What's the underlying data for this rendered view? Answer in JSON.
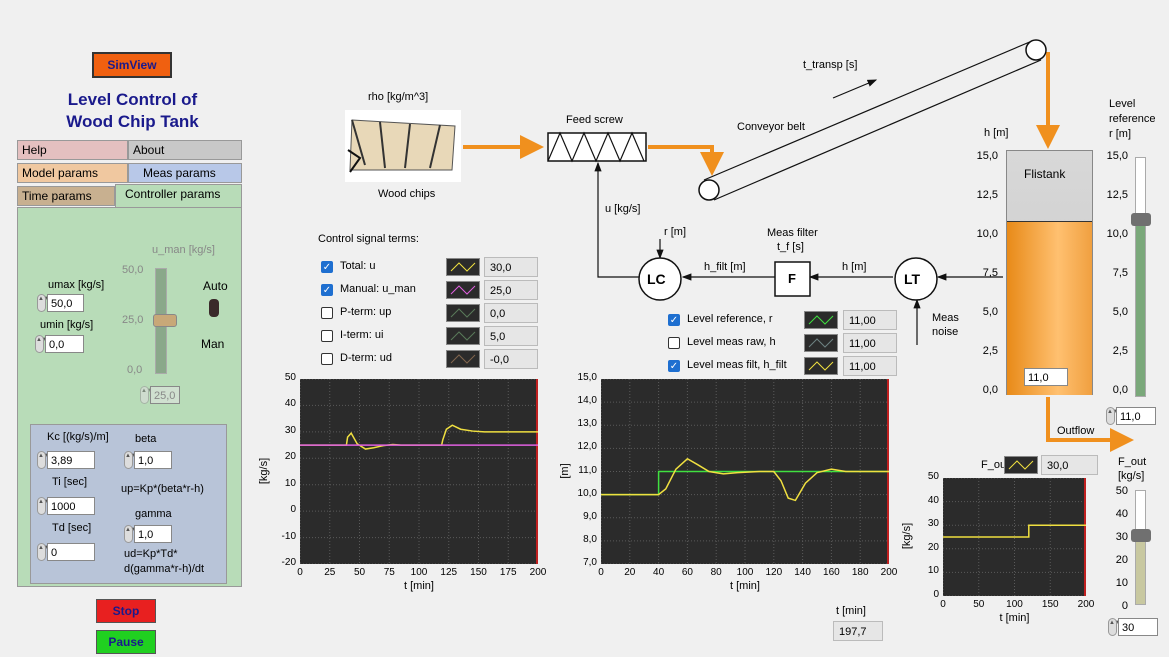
{
  "app": {
    "simview_label": "SimView",
    "title_line1": "Level Control of",
    "title_line2": "Wood Chip Tank"
  },
  "tabs": [
    "Help",
    "About",
    "Model params",
    "Meas params",
    "Time params",
    "Controller params"
  ],
  "manual_panel": {
    "umax_label": "umax [kg/s]",
    "umax_value": "50,0",
    "umin_label": "umin [kg/s]",
    "umin_value": "0,0",
    "u_man_label": "u_man [kg/s]",
    "slider_ticks": [
      "50,0",
      "25,0",
      "0,0"
    ],
    "u_man_value": "25,0",
    "auto_label": "Auto",
    "man_label": "Man"
  },
  "pid_panel": {
    "kc_label": "Kc [(kg/s)/m]",
    "kc_value": "3,89",
    "beta_label": "beta",
    "beta_value": "1,0",
    "ti_label": "Ti [sec]",
    "ti_value": "1000",
    "up_formula": "up=Kp*(beta*r-h)",
    "td_label": "Td [sec]",
    "td_value": "0",
    "gamma_label": "gamma",
    "gamma_value": "1,0",
    "ud_formula_1": "ud=Kp*Td*",
    "ud_formula_2": "d(gamma*r-h)/dt"
  },
  "buttons": {
    "stop": "Stop",
    "pause": "Pause"
  },
  "process": {
    "rho_label": "rho [kg/m^3]",
    "wood_chips_label": "Wood chips",
    "feed_screw_label": "Feed screw",
    "t_transp_label": "t_transp [s]",
    "conveyor_label": "Conveyor belt",
    "u_label": "u [kg/s]",
    "r_label": "r [m]",
    "h_filt_label": "h_filt [m]",
    "lc_label": "LC",
    "meas_filter_label": "Meas filter",
    "tf_label": "t_f [s]",
    "f_label": "F",
    "h_label": "h [m]",
    "lt_label": "LT",
    "meas_noise_1": "Meas",
    "meas_noise_2": "noise",
    "outflow_label": "Outflow"
  },
  "signals": {
    "title": "Control signal terms:",
    "items": [
      {
        "label": "Total: u",
        "checked": true,
        "value": "30,0",
        "color": "#f0e040"
      },
      {
        "label": "Manual: u_man",
        "checked": true,
        "value": "25,0",
        "color": "#e060e0"
      },
      {
        "label": "P-term: up",
        "checked": false,
        "value": "0,0",
        "color": "#88c888"
      },
      {
        "label": "I-term: ui",
        "checked": false,
        "value": "5,0",
        "color": "#88c888"
      },
      {
        "label": "D-term: ud",
        "checked": false,
        "value": "-0,0",
        "color": "#d8a070"
      }
    ]
  },
  "level_signals": {
    "items": [
      {
        "label": "Level reference, r",
        "checked": true,
        "value": "11,00",
        "color": "#40e040"
      },
      {
        "label": "Level meas raw, h",
        "checked": false,
        "value": "11,00",
        "color": "#b0d8d8"
      },
      {
        "label": "Level meas filt, h_filt",
        "checked": true,
        "value": "11,00",
        "color": "#f0e040"
      }
    ]
  },
  "tank": {
    "h_label": "h [m]",
    "name": "Flistank",
    "level_value": "11,0",
    "ticks": [
      "15,0",
      "12,5",
      "10,0",
      "7,5",
      "5,0",
      "2,5",
      "0,0"
    ]
  },
  "level_ref": {
    "label_1": "Level",
    "label_2": "reference",
    "label_3": "r [m]",
    "ticks": [
      "15,0",
      "12,5",
      "10,0",
      "7,5",
      "5,0",
      "2,5",
      "0,0"
    ],
    "value": "11,0"
  },
  "fout": {
    "legend_label": "F_out",
    "legend_value": "30,0",
    "slider_label_1": "F_out",
    "slider_label_2": "[kg/s]",
    "slider_ticks": [
      "50",
      "40",
      "30",
      "20",
      "10",
      "0"
    ],
    "slider_value": "30"
  },
  "time_readout": {
    "label": "t [min]",
    "value": "197,7"
  },
  "chart_data": [
    {
      "type": "line",
      "name": "control-signal-chart",
      "xlabel": "t [min]",
      "ylabel": "[kg/s]",
      "xlim": [
        0,
        200
      ],
      "ylim": [
        -20,
        50
      ],
      "xticks": [
        0,
        25,
        50,
        75,
        100,
        125,
        150,
        175,
        200
      ],
      "yticks": [
        50,
        40,
        30,
        20,
        10,
        0,
        -10,
        -20
      ],
      "grid": true,
      "series": [
        {
          "color": "#f0e040",
          "x": [
            0,
            39,
            40,
            43,
            48,
            55,
            62,
            70,
            78,
            85,
            95,
            110,
            119,
            120,
            123,
            128,
            135,
            145,
            155,
            165,
            180,
            200
          ],
          "y": [
            25,
            25,
            28,
            29.5,
            25.5,
            23.5,
            24,
            24.8,
            25.2,
            25,
            25,
            25,
            25,
            27,
            31,
            32.5,
            31,
            30.3,
            30,
            30,
            30,
            30
          ]
        },
        {
          "color": "#e060e0",
          "x": [
            0,
            200
          ],
          "y": [
            25,
            25
          ]
        }
      ]
    },
    {
      "type": "line",
      "name": "level-chart",
      "xlabel": "t [min]",
      "ylabel": "[m]",
      "xlim": [
        0,
        200
      ],
      "ylim": [
        7,
        15
      ],
      "xticks": [
        0,
        20,
        40,
        60,
        80,
        100,
        120,
        140,
        160,
        180,
        200
      ],
      "yticks": [
        15,
        14,
        13,
        12,
        11,
        10,
        9,
        8,
        7
      ],
      "grid": true,
      "series": [
        {
          "color": "#40e040",
          "x": [
            0,
            40,
            40,
            200
          ],
          "y": [
            10,
            10,
            11,
            11
          ]
        },
        {
          "color": "#f0e040",
          "x": [
            0,
            40,
            45,
            52,
            60,
            67,
            75,
            85,
            95,
            110,
            120,
            125,
            130,
            135,
            142,
            150,
            160,
            170,
            200
          ],
          "y": [
            10,
            10,
            10.25,
            11.1,
            11.55,
            11.3,
            11.0,
            10.9,
            10.95,
            11,
            11,
            10.6,
            9.85,
            9.75,
            10.5,
            10.95,
            11.1,
            11.0,
            11
          ]
        }
      ]
    },
    {
      "type": "line",
      "name": "outflow-chart",
      "xlabel": "t [min]",
      "ylabel": "[kg/s]",
      "xlim": [
        0,
        200
      ],
      "ylim": [
        0,
        50
      ],
      "xticks": [
        0,
        50,
        100,
        150,
        200
      ],
      "yticks": [
        50,
        40,
        30,
        20,
        10,
        0
      ],
      "grid": true,
      "series": [
        {
          "color": "#f0e040",
          "x": [
            0,
            120,
            120,
            200
          ],
          "y": [
            25,
            25,
            30,
            30
          ]
        }
      ]
    }
  ]
}
